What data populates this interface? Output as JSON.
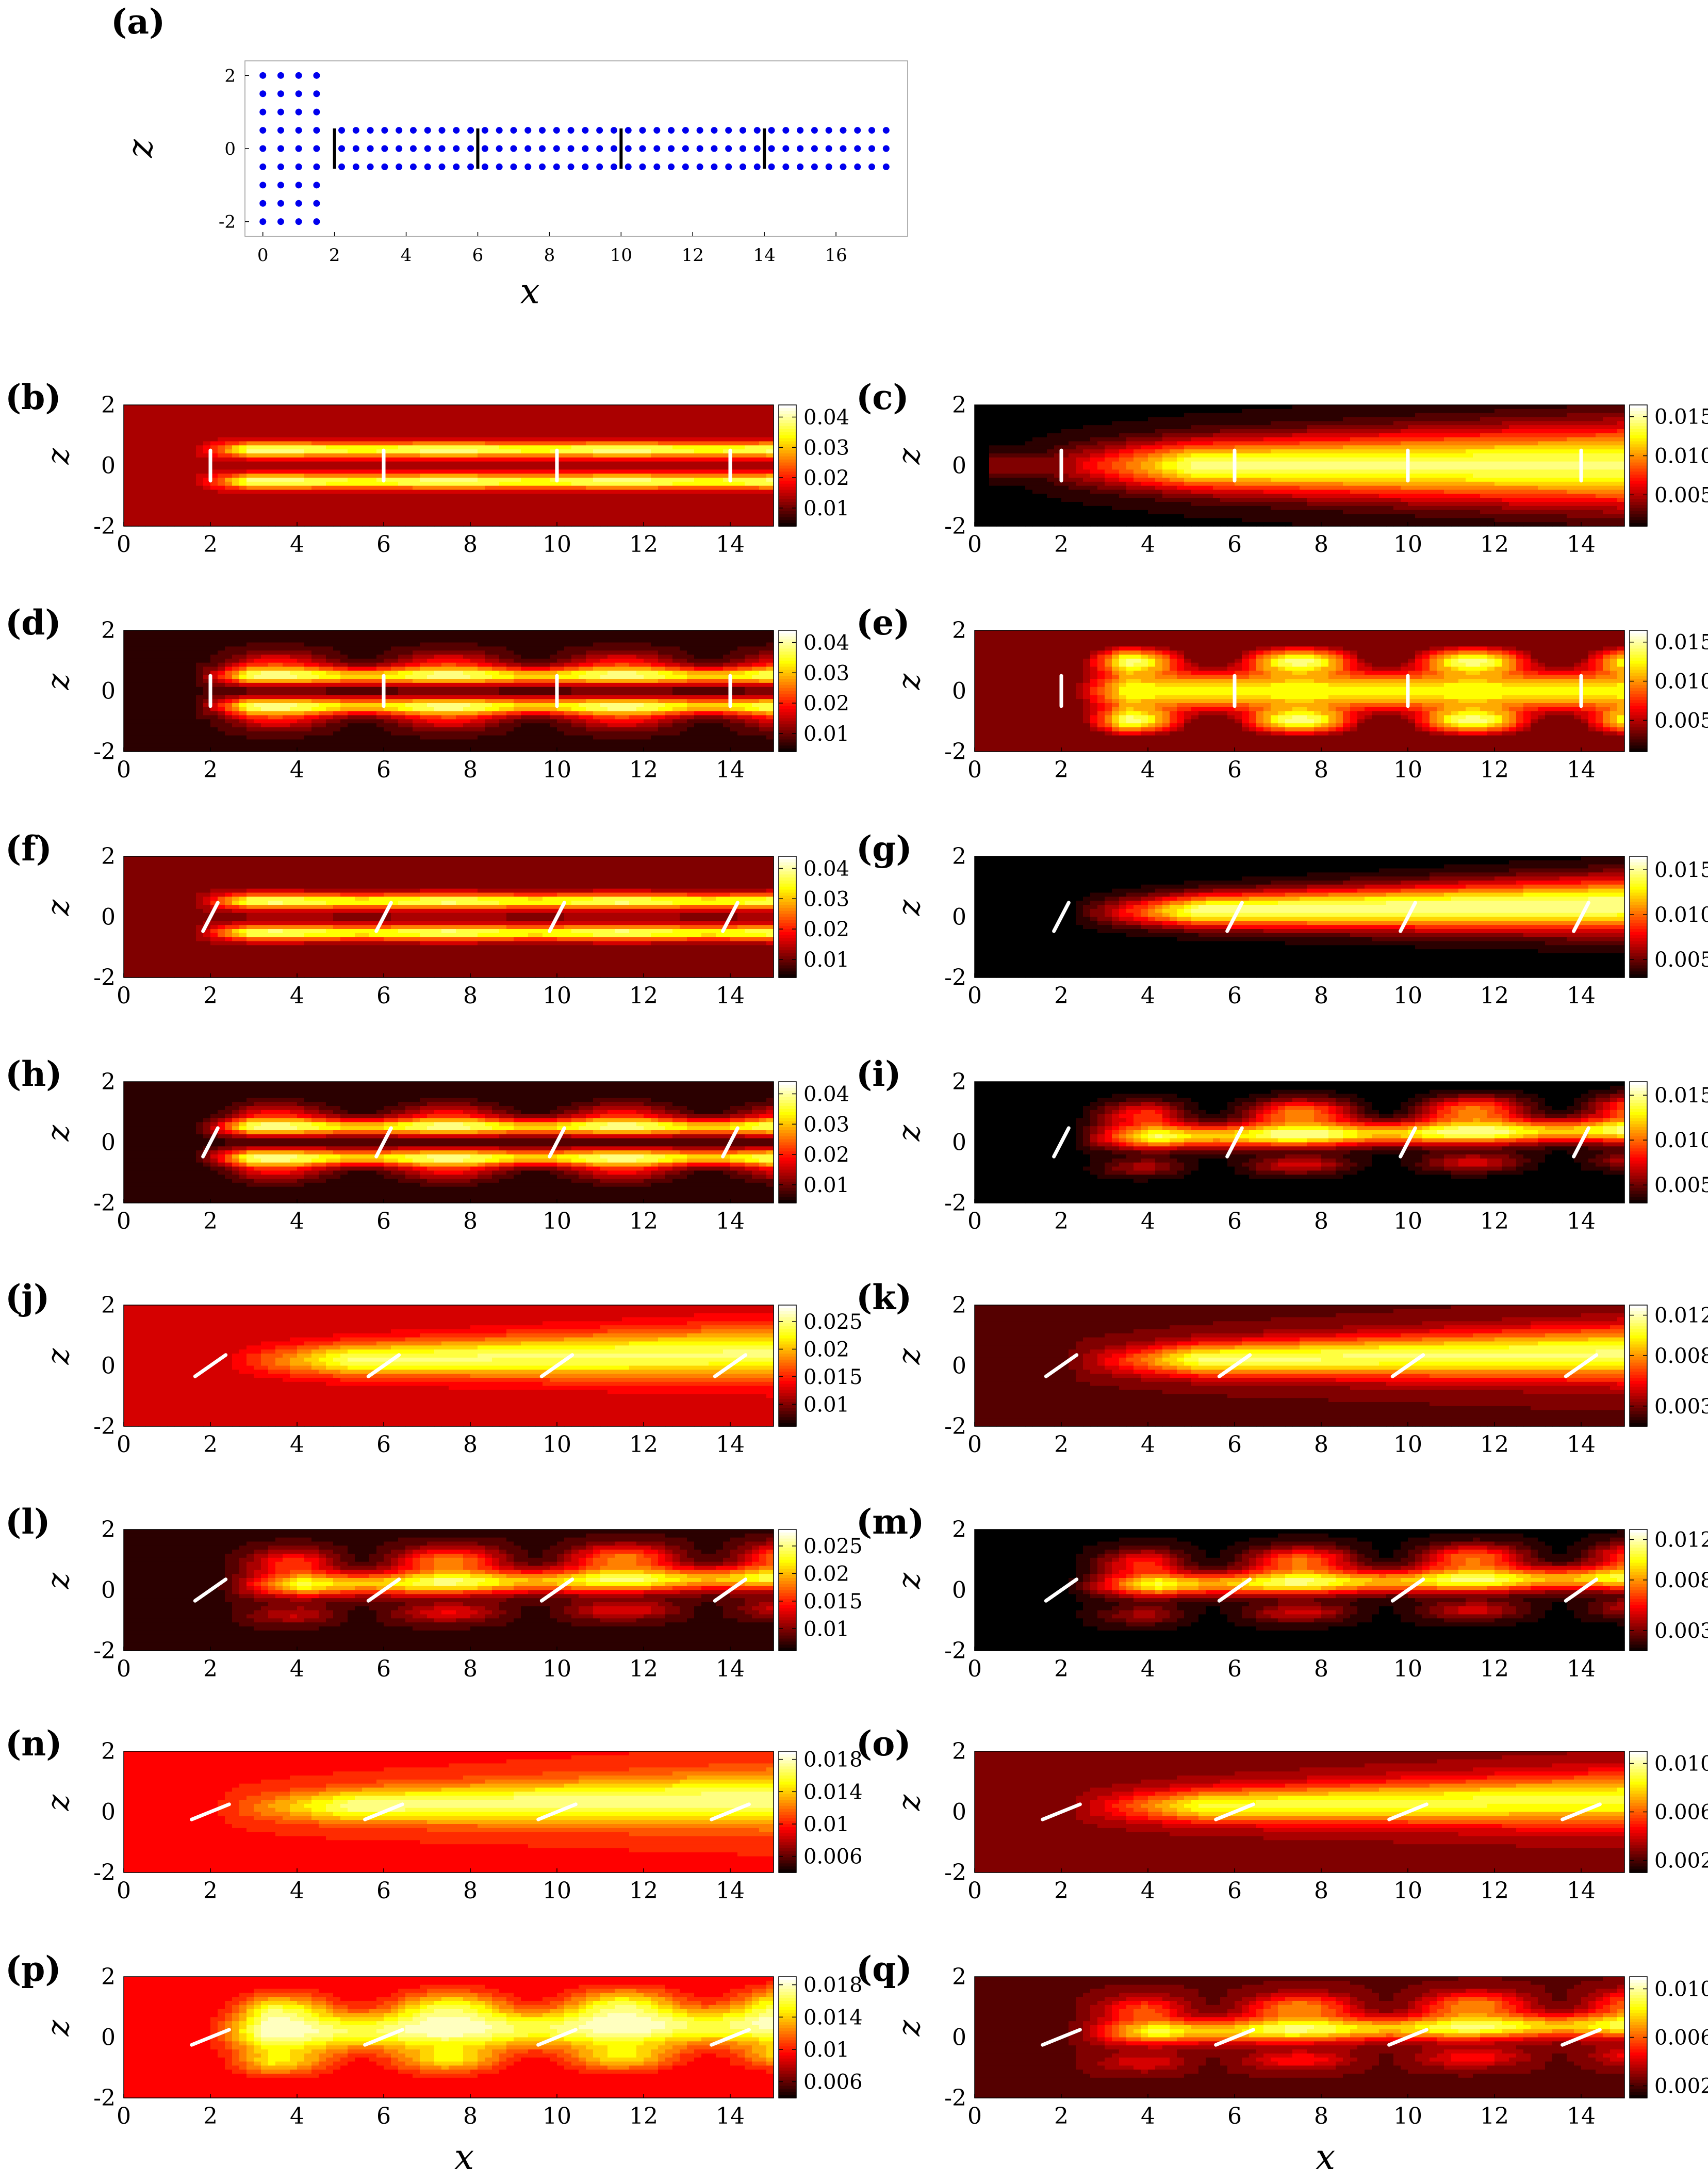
{
  "figure": {
    "x_label_left": "x",
    "x_label_right": "x",
    "z_label": "z"
  },
  "chart_data": [
    {
      "panel": "(a)",
      "type": "scatter",
      "xlabel": "x",
      "ylabel": "z",
      "xlim": [
        -0.5,
        18
      ],
      "ylim": [
        -2.4,
        2.4
      ],
      "xticks": [
        "0",
        "2",
        "4",
        "6",
        "8",
        "10",
        "12",
        "14",
        "16"
      ],
      "xtick_values": [
        0,
        2,
        4,
        6,
        8,
        10,
        12,
        14,
        16
      ],
      "yticks": [
        "-2",
        "0",
        "2"
      ],
      "ytick_values": [
        -2,
        0,
        2
      ],
      "point_color": "#0000ee",
      "plate_color": "#000000",
      "inlet_block": {
        "x_values": [
          0,
          0.5,
          1.0,
          1.5
        ],
        "z_values": [
          -2,
          -1.5,
          -1,
          -0.5,
          0,
          0.5,
          1,
          1.5,
          2
        ]
      },
      "channel_block": {
        "x_start": 2.2,
        "x_end": 17.6,
        "x_step": 0.4,
        "z_values": [
          -0.5,
          0,
          0.5
        ]
      },
      "plates_x": [
        2,
        6,
        10,
        14
      ],
      "plate_half_length": 0.55
    },
    {
      "panel": "(b)",
      "type": "heatmap",
      "cbar_ticks": [
        "0.04",
        "0.03",
        "0.02",
        "0.01"
      ],
      "cbar_values": [
        0.04,
        0.03,
        0.02,
        0.01
      ],
      "cbar_min": 0.004,
      "cbar_max": 0.044,
      "plate_angle_deg": 0,
      "pattern": "two_jets",
      "bg": 0.25,
      "peak": 0.9
    },
    {
      "panel": "(c)",
      "type": "heatmap",
      "cbar_ticks": [
        "0.015",
        "0.010",
        "0.005"
      ],
      "cbar_values": [
        0.015,
        0.01,
        0.005
      ],
      "cbar_min": 0.001,
      "cbar_max": 0.0165,
      "plate_angle_deg": 0,
      "pattern": "broad",
      "bg": 0.02,
      "peak": 0.85
    },
    {
      "panel": "(d)",
      "type": "heatmap",
      "cbar_ticks": [
        "0.04",
        "0.03",
        "0.02",
        "0.01"
      ],
      "cbar_values": [
        0.04,
        0.03,
        0.02,
        0.01
      ],
      "cbar_min": 0.004,
      "cbar_max": 0.044,
      "plate_angle_deg": 0,
      "pattern": "two_jets_wavy",
      "bg": 0.08,
      "peak": 0.85
    },
    {
      "panel": "(e)",
      "type": "heatmap",
      "cbar_ticks": [
        "0.015",
        "0.010",
        "0.005"
      ],
      "cbar_values": [
        0.015,
        0.01,
        0.005
      ],
      "cbar_min": 0.001,
      "cbar_max": 0.0165,
      "plate_angle_deg": 0,
      "pattern": "lobes",
      "bg": 0.05,
      "peak": 0.95
    },
    {
      "panel": "(f)",
      "type": "heatmap",
      "cbar_ticks": [
        "0.04",
        "0.03",
        "0.02",
        "0.01"
      ],
      "cbar_values": [
        0.04,
        0.03,
        0.02,
        0.01
      ],
      "cbar_min": 0.004,
      "cbar_max": 0.044,
      "plate_angle_deg": 20,
      "pattern": "two_jets",
      "bg": 0.2,
      "peak": 0.88
    },
    {
      "panel": "(g)",
      "type": "heatmap",
      "cbar_ticks": [
        "0.015",
        "0.010",
        "0.005"
      ],
      "cbar_values": [
        0.015,
        0.01,
        0.005
      ],
      "cbar_min": 0.003,
      "cbar_max": 0.0165,
      "plate_angle_deg": 20,
      "pattern": "single_jet",
      "bg": 0.0,
      "peak": 0.9
    },
    {
      "panel": "(h)",
      "type": "heatmap",
      "cbar_ticks": [
        "0.04",
        "0.03",
        "0.02",
        "0.01"
      ],
      "cbar_values": [
        0.04,
        0.03,
        0.02,
        0.01
      ],
      "cbar_min": 0.004,
      "cbar_max": 0.044,
      "plate_angle_deg": 20,
      "pattern": "two_jets_wavy",
      "bg": 0.05,
      "peak": 0.85
    },
    {
      "panel": "(i)",
      "type": "heatmap",
      "cbar_ticks": [
        "0.015",
        "0.010",
        "0.005"
      ],
      "cbar_values": [
        0.015,
        0.01,
        0.005
      ],
      "cbar_min": 0.003,
      "cbar_max": 0.0165,
      "plate_angle_deg": 20,
      "pattern": "single_wavy",
      "bg": 0.0,
      "peak": 0.9
    },
    {
      "panel": "(j)",
      "type": "heatmap",
      "cbar_ticks": [
        "0.025",
        "0.02",
        "0.015",
        "0.01"
      ],
      "cbar_values": [
        0.025,
        0.02,
        0.015,
        0.01
      ],
      "cbar_min": 0.006,
      "cbar_max": 0.028,
      "plate_angle_deg": 45,
      "pattern": "single_jet",
      "bg": 0.3,
      "peak": 0.85
    },
    {
      "panel": "(k)",
      "type": "heatmap",
      "cbar_ticks": [
        "0.012",
        "0.008",
        "0.003"
      ],
      "cbar_values": [
        0.012,
        0.008,
        0.003
      ],
      "cbar_min": 0.001,
      "cbar_max": 0.013,
      "plate_angle_deg": 45,
      "pattern": "single_jet",
      "bg": 0.15,
      "peak": 0.85
    },
    {
      "panel": "(l)",
      "type": "heatmap",
      "cbar_ticks": [
        "0.025",
        "0.02",
        "0.015",
        "0.01"
      ],
      "cbar_values": [
        0.025,
        0.02,
        0.015,
        0.01
      ],
      "cbar_min": 0.006,
      "cbar_max": 0.028,
      "plate_angle_deg": 45,
      "pattern": "single_wavy",
      "bg": 0.08,
      "peak": 0.85
    },
    {
      "panel": "(m)",
      "type": "heatmap",
      "cbar_ticks": [
        "0.012",
        "0.008",
        "0.003"
      ],
      "cbar_values": [
        0.012,
        0.008,
        0.003
      ],
      "cbar_min": 0.001,
      "cbar_max": 0.013,
      "plate_angle_deg": 45,
      "pattern": "single_wavy",
      "bg": 0.02,
      "peak": 0.85
    },
    {
      "panel": "(n)",
      "type": "heatmap",
      "cbar_ticks": [
        "0.018",
        "0.014",
        "0.01",
        "0.006"
      ],
      "cbar_values": [
        0.018,
        0.014,
        0.01,
        0.006
      ],
      "cbar_min": 0.004,
      "cbar_max": 0.019,
      "plate_angle_deg": 60,
      "pattern": "single_jet",
      "bg": 0.4,
      "peak": 0.88
    },
    {
      "panel": "(o)",
      "type": "heatmap",
      "cbar_ticks": [
        "0.010",
        "0.006",
        "0.002"
      ],
      "cbar_values": [
        0.01,
        0.006,
        0.002
      ],
      "cbar_min": 0.001,
      "cbar_max": 0.011,
      "plate_angle_deg": 60,
      "pattern": "single_jet",
      "bg": 0.2,
      "peak": 0.8
    },
    {
      "panel": "(p)",
      "type": "heatmap",
      "cbar_ticks": [
        "0.018",
        "0.014",
        "0.01",
        "0.006"
      ],
      "cbar_values": [
        0.018,
        0.014,
        0.01,
        0.006
      ],
      "cbar_min": 0.004,
      "cbar_max": 0.019,
      "plate_angle_deg": 60,
      "pattern": "single_wavy_strong",
      "bg": 0.35,
      "peak": 0.95
    },
    {
      "panel": "(q)",
      "type": "heatmap",
      "cbar_ticks": [
        "0.010",
        "0.006",
        "0.002"
      ],
      "cbar_values": [
        0.01,
        0.006,
        0.002
      ],
      "cbar_min": 0.001,
      "cbar_max": 0.011,
      "plate_angle_deg": 60,
      "pattern": "single_wavy",
      "bg": 0.15,
      "peak": 0.85
    }
  ],
  "heatmap_axes": {
    "xlim": [
      0,
      15
    ],
    "ylim": [
      -2,
      2
    ],
    "xticks": [
      "0",
      "2",
      "4",
      "6",
      "8",
      "10",
      "12",
      "14"
    ],
    "xtick_values": [
      0,
      2,
      4,
      6,
      8,
      10,
      12,
      14
    ],
    "yticks": [
      "2",
      "0",
      "-2"
    ],
    "ytick_values": [
      2,
      0,
      -2
    ],
    "plates_x": [
      2,
      6,
      10,
      14
    ],
    "plate_color": "#ffffff",
    "colormap": "hot"
  }
}
